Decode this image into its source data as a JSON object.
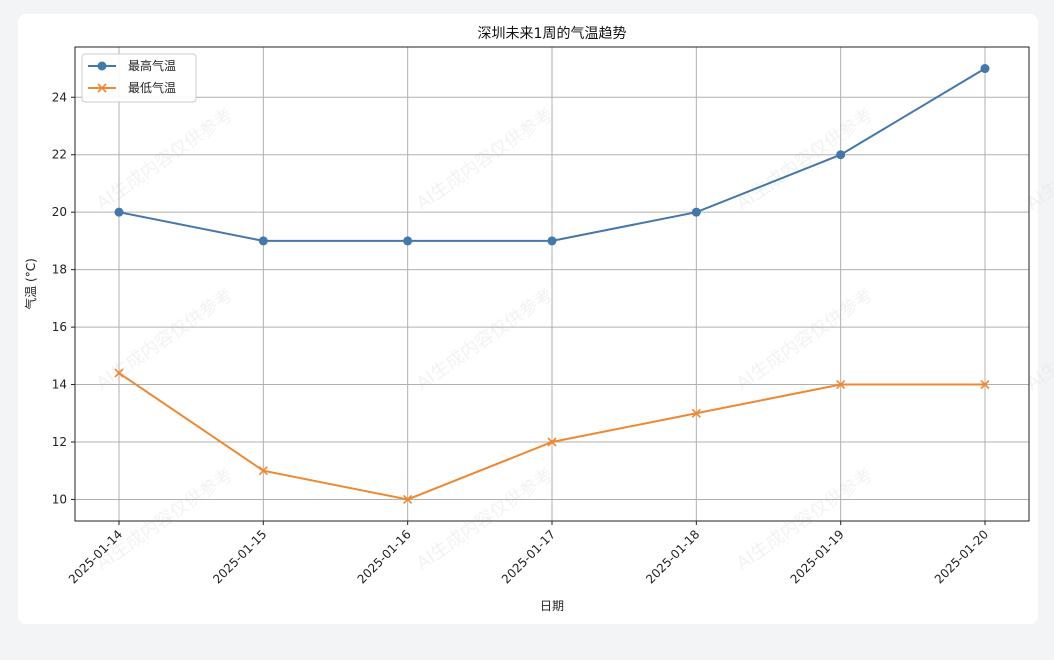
{
  "chart_data": {
    "type": "line",
    "title": "深圳未来1周的气温趋势",
    "xlabel": "日期",
    "ylabel": "气温 (°C)",
    "categories": [
      "2025-01-14",
      "2025-01-15",
      "2025-01-16",
      "2025-01-17",
      "2025-01-18",
      "2025-01-19",
      "2025-01-20"
    ],
    "series": [
      {
        "name": "最高气温",
        "values": [
          20,
          19,
          19,
          19,
          20,
          22,
          25
        ],
        "color": "#4477aa",
        "marker": "circle"
      },
      {
        "name": "最低气温",
        "values": [
          14.4,
          11,
          10,
          12,
          13,
          14,
          14
        ],
        "color": "#ee8833",
        "marker": "x"
      }
    ],
    "ylim": [
      9.25,
      25.75
    ],
    "yticks": [
      10,
      12,
      14,
      16,
      18,
      20,
      22,
      24
    ],
    "grid": true,
    "legend_position": "top-left",
    "x_tick_rotation": 45
  },
  "watermark": {
    "text": "AI生成内容仅供参考"
  }
}
